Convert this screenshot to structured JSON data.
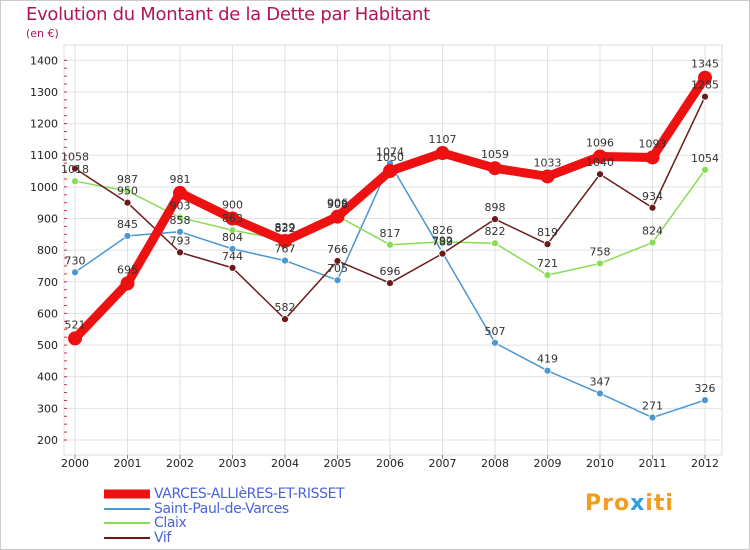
{
  "chart_data": {
    "type": "line",
    "title": "Evolution du Montant de la Dette par Habitant",
    "subtitle": "(en €)",
    "x": [
      "2000",
      "2001",
      "2002",
      "2003",
      "2004",
      "2005",
      "2006",
      "2007",
      "2008",
      "2009",
      "2010",
      "2011",
      "2012"
    ],
    "ylim": [
      200,
      1400
    ],
    "yticks": [
      200,
      300,
      400,
      500,
      600,
      700,
      800,
      900,
      1000,
      1100,
      1200,
      1300,
      1400
    ],
    "grid": true,
    "legend_position": "bottom-left",
    "series": [
      {
        "name": "VARCES-ALLIèRES-ET-RISSET",
        "color": "#ee1111",
        "values": [
          521,
          695,
          981,
          900,
          829,
          906,
          1050,
          1107,
          1059,
          1033,
          1096,
          1093,
          1345
        ]
      },
      {
        "name": "Saint-Paul-de-Varces",
        "color": "#4b97d1",
        "values": [
          730,
          845,
          858,
          804,
          767,
          705,
          1074,
          792,
          507,
          419,
          347,
          271,
          326
        ]
      },
      {
        "name": "Claix",
        "color": "#88dd55",
        "values": [
          1018,
          987,
          903,
          863,
          832,
          908,
          817,
          826,
          822,
          721,
          758,
          824,
          1054
        ]
      },
      {
        "name": "Vif",
        "color": "#6a1a1a",
        "values": [
          1058,
          950,
          793,
          744,
          582,
          766,
          696,
          789,
          898,
          819,
          1040,
          934,
          1285
        ]
      }
    ]
  },
  "logo": {
    "part1": "Pro",
    "part2": "x",
    "part3": "iti"
  }
}
